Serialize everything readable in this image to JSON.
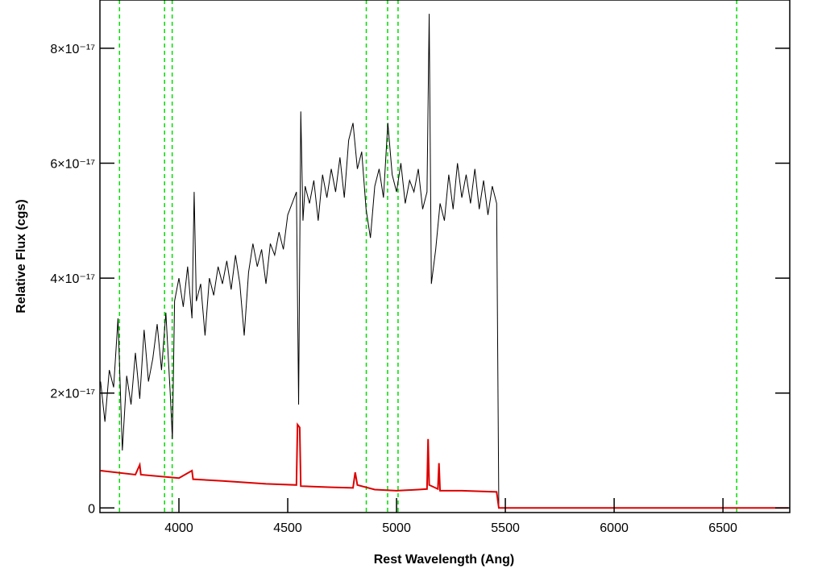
{
  "chart_data": {
    "type": "line",
    "xlabel": "Rest Wavelength (Ang)",
    "ylabel": "Relative Flux (cgs)",
    "xlim": [
      3637,
      6807
    ],
    "ylim": [
      -8e-19,
      8.84e-17
    ],
    "xticks": [
      4000,
      4500,
      5000,
      5500,
      6000,
      6500
    ],
    "yticks": [
      0,
      {
        "value": 2e-17,
        "label": "2×10⁻¹⁷"
      },
      {
        "value": 4e-17,
        "label": "4×10⁻¹⁷"
      },
      {
        "value": 6e-17,
        "label": "6×10⁻¹⁷"
      },
      {
        "value": 8e-17,
        "label": "8×10⁻¹⁷"
      }
    ],
    "vlines": {
      "color": "#00dd00",
      "values": [
        3727,
        3934,
        3969,
        4861,
        4959,
        5007,
        6563
      ]
    },
    "series": [
      {
        "color": "#000000",
        "x": [
          3640,
          3660,
          3680,
          3700,
          3720,
          3740,
          3760,
          3780,
          3800,
          3820,
          3840,
          3860,
          3880,
          3900,
          3920,
          3940,
          3960,
          3970,
          3980,
          4000,
          4020,
          4040,
          4060,
          4070,
          4080,
          4100,
          4120,
          4140,
          4160,
          4180,
          4200,
          4220,
          4240,
          4260,
          4280,
          4300,
          4320,
          4340,
          4360,
          4380,
          4400,
          4420,
          4440,
          4460,
          4480,
          4500,
          4520,
          4540,
          4550,
          4560,
          4570,
          4580,
          4600,
          4620,
          4640,
          4660,
          4680,
          4700,
          4720,
          4740,
          4760,
          4780,
          4800,
          4820,
          4840,
          4860,
          4880,
          4900,
          4920,
          4940,
          4960,
          4980,
          5000,
          5020,
          5040,
          5060,
          5080,
          5100,
          5120,
          5140,
          5150,
          5160,
          5180,
          5200,
          5220,
          5240,
          5260,
          5280,
          5300,
          5320,
          5340,
          5360,
          5380,
          5400,
          5420,
          5440,
          5460,
          5470,
          6800
        ],
        "values": [
          2.2e-17,
          1.5e-17,
          2.4e-17,
          2.1e-17,
          3.3e-17,
          1e-17,
          2.3e-17,
          1.8e-17,
          2.7e-17,
          1.9e-17,
          3.1e-17,
          2.2e-17,
          2.6e-17,
          3.2e-17,
          2.4e-17,
          3.4e-17,
          2e-17,
          1.2e-17,
          3.6e-17,
          4e-17,
          3.5e-17,
          4.2e-17,
          3.3e-17,
          5.5e-17,
          3.6e-17,
          3.9e-17,
          3e-17,
          4e-17,
          3.7e-17,
          4.2e-17,
          3.9e-17,
          4.3e-17,
          3.8e-17,
          4.4e-17,
          3.9e-17,
          3e-17,
          4.1e-17,
          4.6e-17,
          4.2e-17,
          4.5e-17,
          3.9e-17,
          4.6e-17,
          4.4e-17,
          4.8e-17,
          4.5e-17,
          5.1e-17,
          5.3e-17,
          5.5e-17,
          1.8e-17,
          6.9e-17,
          5e-17,
          5.6e-17,
          5.3e-17,
          5.7e-17,
          5e-17,
          5.8e-17,
          5.4e-17,
          5.9e-17,
          5.5e-17,
          6.1e-17,
          5.4e-17,
          6.4e-17,
          6.7e-17,
          5.9e-17,
          6.2e-17,
          5.2e-17,
          4.7e-17,
          5.6e-17,
          5.9e-17,
          5.4e-17,
          6.7e-17,
          5.8e-17,
          5.5e-17,
          6e-17,
          5.3e-17,
          5.7e-17,
          5.5e-17,
          5.9e-17,
          5.2e-17,
          5.5e-17,
          8.6e-17,
          3.9e-17,
          4.5e-17,
          5.3e-17,
          5e-17,
          5.8e-17,
          5.2e-17,
          6e-17,
          5.4e-17,
          5.8e-17,
          5.3e-17,
          5.9e-17,
          5.2e-17,
          5.7e-17,
          5.1e-17,
          5.6e-17,
          5.3e-17,
          0,
          0
        ]
      },
      {
        "color": "#dd0000",
        "x": [
          3640,
          3800,
          3820,
          3825,
          4000,
          4060,
          4065,
          4200,
          4400,
          4540,
          4545,
          4555,
          4560,
          4700,
          4800,
          4810,
          4820,
          4900,
          5000,
          5100,
          5140,
          5145,
          5150,
          5190,
          5195,
          5200,
          5300,
          5460,
          5470,
          6800
        ],
        "values": [
          6.5e-18,
          5.8e-18,
          7.5e-18,
          5.8e-18,
          5.2e-18,
          6.5e-18,
          5e-18,
          4.7e-18,
          4.2e-18,
          4e-18,
          1.45e-17,
          1.4e-17,
          3.8e-18,
          3.6e-18,
          3.5e-18,
          6.2e-18,
          4e-18,
          3.2e-18,
          3e-18,
          3.2e-18,
          3.3e-18,
          1.2e-17,
          4e-18,
          3.3e-18,
          7.8e-18,
          3e-18,
          3e-18,
          2.8e-18,
          0,
          0
        ]
      }
    ]
  }
}
